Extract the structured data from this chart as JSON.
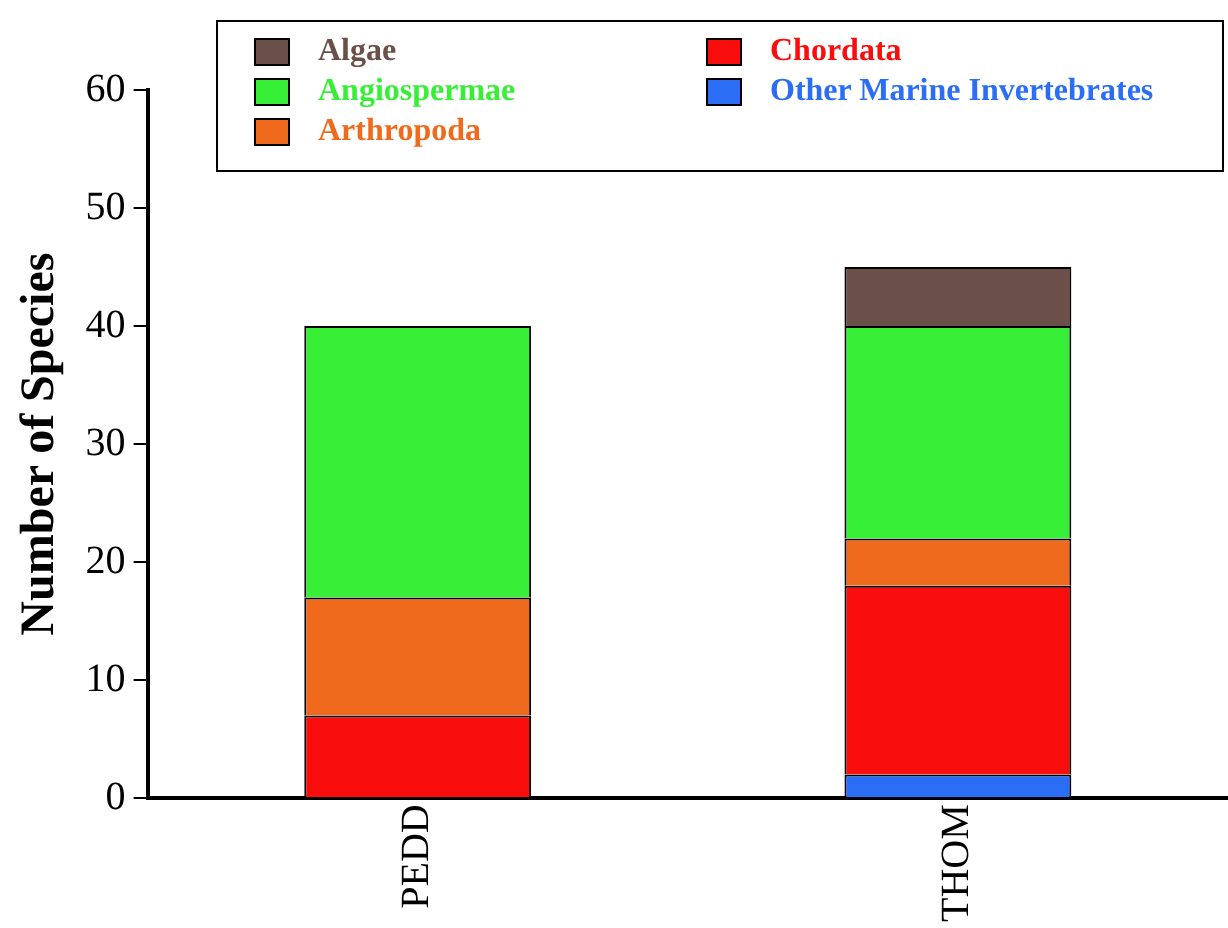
{
  "chart_data": {
    "type": "bar",
    "stacked": true,
    "ylabel": "Number of Species",
    "categories": [
      "PEDD",
      "THOM"
    ],
    "series": [
      {
        "name": "Other Marine Invertebrates",
        "color": "#2b6ef5",
        "values": [
          null,
          2
        ]
      },
      {
        "name": "Chordata",
        "color": "#fa0d0d",
        "values": [
          7,
          16
        ]
      },
      {
        "name": "Arthropoda",
        "color": "#ef6a1c",
        "values": [
          10,
          4
        ]
      },
      {
        "name": "Angiospermae",
        "color": "#38ef38",
        "values": [
          23,
          18
        ]
      },
      {
        "name": "Algae",
        "color": "#6b5049",
        "values": [
          null,
          5
        ]
      }
    ],
    "ylim": [
      0,
      60
    ],
    "yticks": [
      0,
      10,
      20,
      30,
      40,
      50,
      60
    ],
    "legend": "top",
    "grid": false
  }
}
